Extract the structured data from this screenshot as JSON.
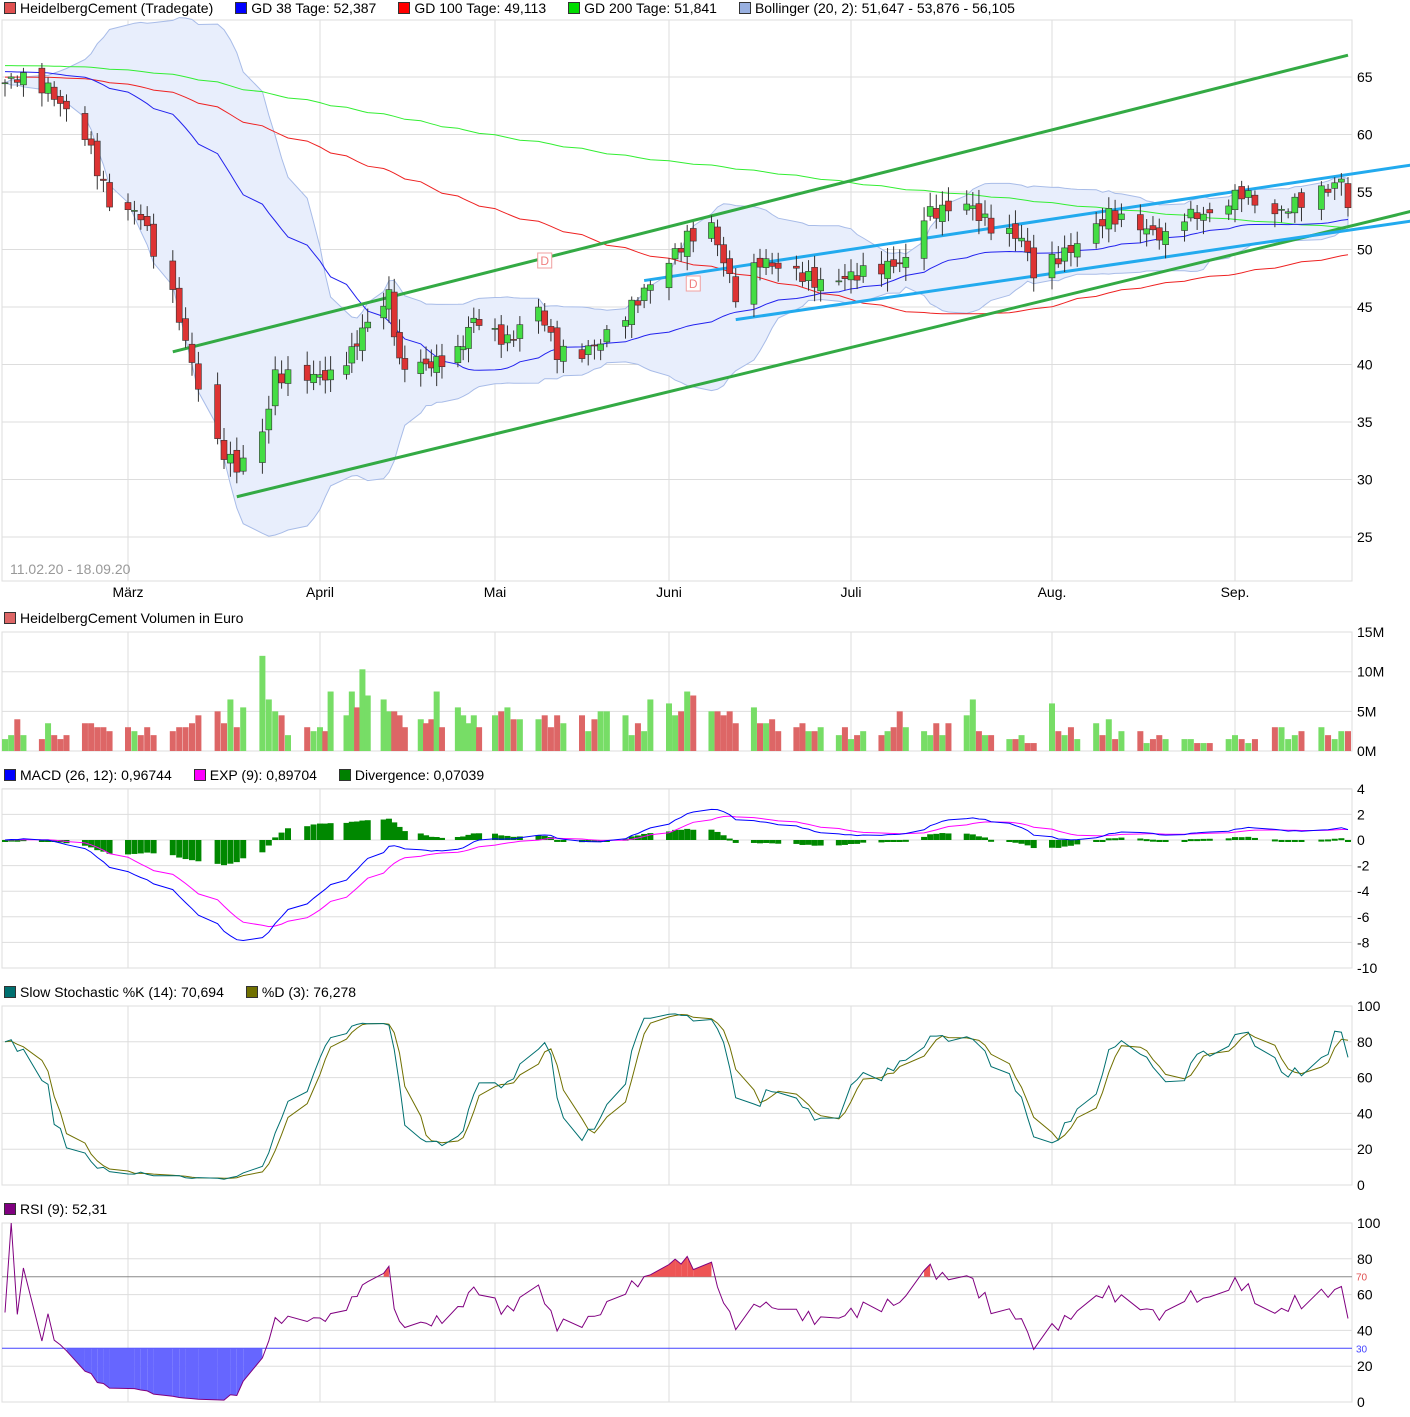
{
  "legend_price": [
    {
      "label": "HeidelbergCement (Tradegate)",
      "color": "#e05050"
    },
    {
      "label": "GD 38 Tage: 52,387",
      "color": "#0000ff"
    },
    {
      "label": "GD 100 Tage: 49,113",
      "color": "#ff0000"
    },
    {
      "label": "GD 200 Tage: 51,841",
      "color": "#00dd00"
    },
    {
      "label": "Bollinger (20, 2): 51,647 - 53,876 - 56,105",
      "color": "#99b0e0"
    }
  ],
  "date_range": "11.02.20 - 18.09.20",
  "legend_volume": {
    "label": "HeidelbergCement Volumen in Euro",
    "color": "#dd6666"
  },
  "legend_macd": [
    {
      "label": "MACD (26, 12): 0,96744",
      "color": "#0000ff"
    },
    {
      "label": "EXP (9): 0,89704",
      "color": "#ff00ff"
    },
    {
      "label": "Divergence: 0,07039",
      "color": "#008000"
    }
  ],
  "legend_stoch": [
    {
      "label": "Slow Stochastic %K (14): 70,694",
      "color": "#007070"
    },
    {
      "label": "%D (3): 76,278",
      "color": "#707000"
    }
  ],
  "legend_rsi": [
    {
      "label": "RSI (9): 52,31",
      "color": "#800080"
    }
  ],
  "chart_data": {
    "type": "candlestick",
    "x_labels": [
      {
        "date": "2020-03-02",
        "label": "März"
      },
      {
        "date": "2020-04-01",
        "label": "April"
      },
      {
        "date": "2020-05-04",
        "label": "Mai"
      },
      {
        "date": "2020-06-01",
        "label": "Juni"
      },
      {
        "date": "2020-07-01",
        "label": "Juli"
      },
      {
        "date": "2020-08-03",
        "label": "Aug."
      },
      {
        "date": "2020-09-01",
        "label": "Sep."
      }
    ],
    "price_ticks": [
      65,
      60,
      55,
      50,
      45,
      40,
      35,
      30,
      25
    ],
    "close_keypoints": [
      [
        "2020-02-11",
        64.5
      ],
      [
        "2020-02-13",
        65
      ],
      [
        "2020-02-18",
        64
      ],
      [
        "2020-02-21",
        62
      ],
      [
        "2020-02-24",
        60
      ],
      [
        "2020-02-26",
        57
      ],
      [
        "2020-02-28",
        54
      ],
      [
        "2020-03-04",
        53
      ],
      [
        "2020-03-06",
        50
      ],
      [
        "2020-03-09",
        46
      ],
      [
        "2020-03-12",
        40
      ],
      [
        "2020-03-16",
        33
      ],
      [
        "2020-03-19",
        31
      ],
      [
        "2020-03-23",
        34
      ],
      [
        "2020-03-25",
        39
      ],
      [
        "2020-03-30",
        39
      ],
      [
        "2020-04-03",
        39
      ],
      [
        "2020-04-07",
        41
      ],
      [
        "2020-04-09",
        43
      ],
      [
        "2020-04-14",
        46
      ],
      [
        "2020-04-16",
        40
      ],
      [
        "2020-04-22",
        40
      ],
      [
        "2020-04-27",
        41
      ],
      [
        "2020-04-30",
        44
      ],
      [
        "2020-05-06",
        42
      ],
      [
        "2020-05-11",
        45
      ],
      [
        "2020-05-14",
        41
      ],
      [
        "2020-05-18",
        41
      ],
      [
        "2020-05-21",
        42
      ],
      [
        "2020-05-26",
        45
      ],
      [
        "2020-05-29",
        47
      ],
      [
        "2020-06-04",
        51
      ],
      [
        "2020-06-08",
        52
      ],
      [
        "2020-06-12",
        46
      ],
      [
        "2020-06-16",
        49
      ],
      [
        "2020-06-22",
        48
      ],
      [
        "2020-06-26",
        47
      ],
      [
        "2020-07-03",
        48
      ],
      [
        "2020-07-10",
        49
      ],
      [
        "2020-07-13",
        53
      ],
      [
        "2020-07-20",
        54
      ],
      [
        "2020-07-24",
        52
      ],
      [
        "2020-07-29",
        51
      ],
      [
        "2020-07-31",
        48
      ],
      [
        "2020-08-06",
        50
      ],
      [
        "2020-08-10",
        52
      ],
      [
        "2020-08-12",
        53
      ],
      [
        "2020-08-17",
        52
      ],
      [
        "2020-08-21",
        51
      ],
      [
        "2020-08-24",
        53
      ],
      [
        "2020-08-28",
        53
      ],
      [
        "2020-09-02",
        55
      ],
      [
        "2020-09-07",
        53
      ],
      [
        "2020-09-10",
        54
      ],
      [
        "2020-09-14",
        55
      ],
      [
        "2020-09-17",
        56
      ],
      [
        "2020-09-18",
        54
      ]
    ],
    "trendlines": [
      {
        "color": "#33aa44",
        "from": [
          "2020-03-09",
          41.1
        ],
        "to": [
          "2020-09-18",
          66.9
        ]
      },
      {
        "color": "#33aa44",
        "from": [
          "2020-03-19",
          28.5
        ],
        "to": [
          "2020-09-28",
          54.7
        ]
      },
      {
        "color": "#22aaee",
        "from": [
          "2020-05-28",
          47.3
        ],
        "to": [
          "2020-09-28",
          58.2
        ]
      },
      {
        "color": "#22aaee",
        "from": [
          "2020-06-12",
          43.9
        ],
        "to": [
          "2020-09-28",
          53.3
        ]
      }
    ],
    "dividend_markers": [
      {
        "date": "2020-05-12",
        "label": "D",
        "price": 49
      },
      {
        "date": "2020-06-05",
        "label": "D",
        "price": 47
      }
    ],
    "volume_ticks": [
      "15M",
      "10M",
      "5M",
      "0M"
    ],
    "volume_millions": [
      1.5,
      2,
      4,
      2,
      1.5,
      3.5,
      2,
      1.5,
      2,
      3.5,
      3.5,
      3,
      3,
      2.5,
      3,
      2.5,
      2,
      3,
      2,
      2.5,
      3,
      3,
      3.5,
      4.5,
      5,
      3.5,
      6.5,
      3,
      5.5,
      12,
      6.5,
      5,
      4.5,
      2,
      3,
      2.5,
      3,
      2.5,
      7.5,
      4.5,
      7.5,
      5.5,
      10.3,
      7,
      6.5,
      5,
      5,
      4.5,
      3,
      4,
      3.5,
      4,
      7.5,
      3,
      5.5,
      4.5,
      3.5,
      4.5,
      3,
      4.5,
      5,
      5.5,
      4,
      4,
      4,
      4.5,
      3,
      4.5,
      3.5,
      4.5,
      2.5,
      4,
      5,
      5,
      4.5,
      2,
      3.5,
      2.5,
      6.5,
      6,
      4.5,
      5,
      7.5,
      7,
      5,
      5,
      4.5,
      5,
      3.5,
      5.5,
      3.5,
      3.5,
      4,
      2.5,
      3,
      3.5,
      2.5,
      2.5,
      3,
      2,
      3,
      1.5,
      2,
      2.5,
      2,
      2.5,
      3,
      5,
      3,
      2.5,
      2,
      3.5,
      2,
      3.5,
      4.5,
      6.5,
      2.5,
      2,
      2,
      1.5,
      1.5,
      2,
      1,
      1,
      6,
      2.5,
      2,
      3,
      1.5,
      3.5,
      2,
      4,
      1.5,
      2.5,
      2.5,
      1,
      1.5,
      2,
      1.5,
      1.5,
      1.5,
      1,
      1,
      1,
      1.5,
      2,
      1.5,
      1,
      1.5,
      3,
      3,
      1.5,
      2,
      2.5,
      3,
      2,
      1.5,
      2.5,
      2.5
    ],
    "macd_ticks": [
      "4",
      "2",
      "0",
      "-2",
      "-4",
      "-6",
      "-8",
      "-10"
    ],
    "stoch_ticks": [
      "100",
      "80",
      "60",
      "40",
      "20",
      "0"
    ],
    "rsi_ticks": [
      "100",
      "80",
      "60",
      "40",
      "20",
      "0"
    ],
    "rsi_levels": [
      "70",
      "30"
    ],
    "colors": {
      "up": "#44dd44",
      "down": "#dd3333",
      "bollinger_fill": "#e8eefc",
      "grid": "#dddddd"
    }
  }
}
